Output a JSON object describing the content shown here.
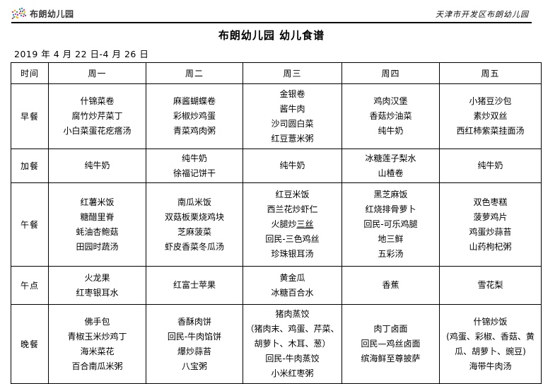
{
  "header": {
    "logo_text": "布朗幼儿园",
    "logo_icon": "confetti-burst-icon",
    "logo_dot_colors": [
      "#d64541",
      "#f5a623",
      "#3fa34d",
      "#2e86de",
      "#e84393",
      "#8e44ad",
      "#16a085",
      "#f1c40f"
    ],
    "school_name": "天津市开发区布朗幼儿园",
    "title": "布朗幼儿园 幼儿食谱",
    "date_range": "2019 年 4 月 22 日-4 月 26 日"
  },
  "table": {
    "time_header": "时间",
    "day_headers": [
      "周一",
      "周二",
      "周三",
      "周四",
      "周五"
    ],
    "rows": [
      {
        "label": "早餐",
        "cells": [
          [
            "什锦菜卷",
            "腐竹炒芹菜丁",
            "小白菜蛋花疙瘩汤"
          ],
          [
            "麻酱蝴蝶卷",
            "彩椒炒鸡蛋",
            "青菜鸡肉粥"
          ],
          [
            "金银卷",
            "酱牛肉",
            "沙司圆白菜",
            "红豆薏米粥"
          ],
          [
            "鸡肉汉堡",
            "香菇炒油菜",
            "纯牛奶"
          ],
          [
            "小猪豆沙包",
            "素炒双丝",
            "西红柿紫菜挂面汤"
          ]
        ]
      },
      {
        "label": "加餐",
        "cells": [
          [
            "纯牛奶"
          ],
          [
            "纯牛奶",
            "徐福记饼干"
          ],
          [
            "纯牛奶"
          ],
          [
            "冰糖莲子梨水",
            "山楂卷"
          ],
          [
            "纯牛奶"
          ]
        ]
      },
      {
        "label": "午餐",
        "cells": [
          [
            "红薯米饭",
            "糖醋里脊",
            "蚝油杏鲍菇",
            "田园时蔬汤"
          ],
          [
            "南瓜米饭",
            "双菇板栗烧鸡块",
            "芝麻菠菜",
            "虾皮香菜冬瓜汤"
          ],
          [
            "红豆米饭",
            "西兰花炒虾仁",
            [
              "火腿炒",
              {
                "text": "三丝",
                "underline": true
              }
            ],
            "回民-三色鸡丝",
            "珍珠银耳汤"
          ],
          [
            "黑芝麻饭",
            "红烧排骨萝卜",
            "回民-可乐鸡腿",
            "地三鲜",
            "五彩汤"
          ],
          [
            "双色枣糕",
            "菠萝鸡片",
            "鸡蛋炒蒜苔",
            "山药枸杞粥"
          ]
        ]
      },
      {
        "label": "午点",
        "cells": [
          [
            "火龙果",
            "红枣银耳水"
          ],
          [
            "红富士苹果"
          ],
          [
            "黄金瓜",
            "冰糖百合水"
          ],
          [
            "香蕉"
          ],
          [
            "雪花梨"
          ]
        ]
      },
      {
        "label": "晚餐",
        "cells": [
          [
            "佛手包",
            "青椒玉米炒鸡丁",
            "海米菜花",
            "百合南瓜米粥"
          ],
          [
            "香酥肉饼",
            "回民-牛肉馅饼",
            "爆炒蒜苔",
            "八宝粥"
          ],
          [
            "猪肉蒸饺",
            "（猪肉末、鸡蛋、芹菜、",
            "胡萝卜、木耳、葱）",
            "回民-牛肉蒸饺",
            "小米红枣粥"
          ],
          [
            "肉丁卤面",
            "回民—鸡丝卤面",
            "缤海鲜至尊披萨"
          ],
          [
            "什锦炒饭",
            "(鸡蛋、彩椒、香菇、黄",
            "瓜、胡萝卜、豌豆)",
            "海带牛肉汤"
          ]
        ]
      }
    ]
  }
}
